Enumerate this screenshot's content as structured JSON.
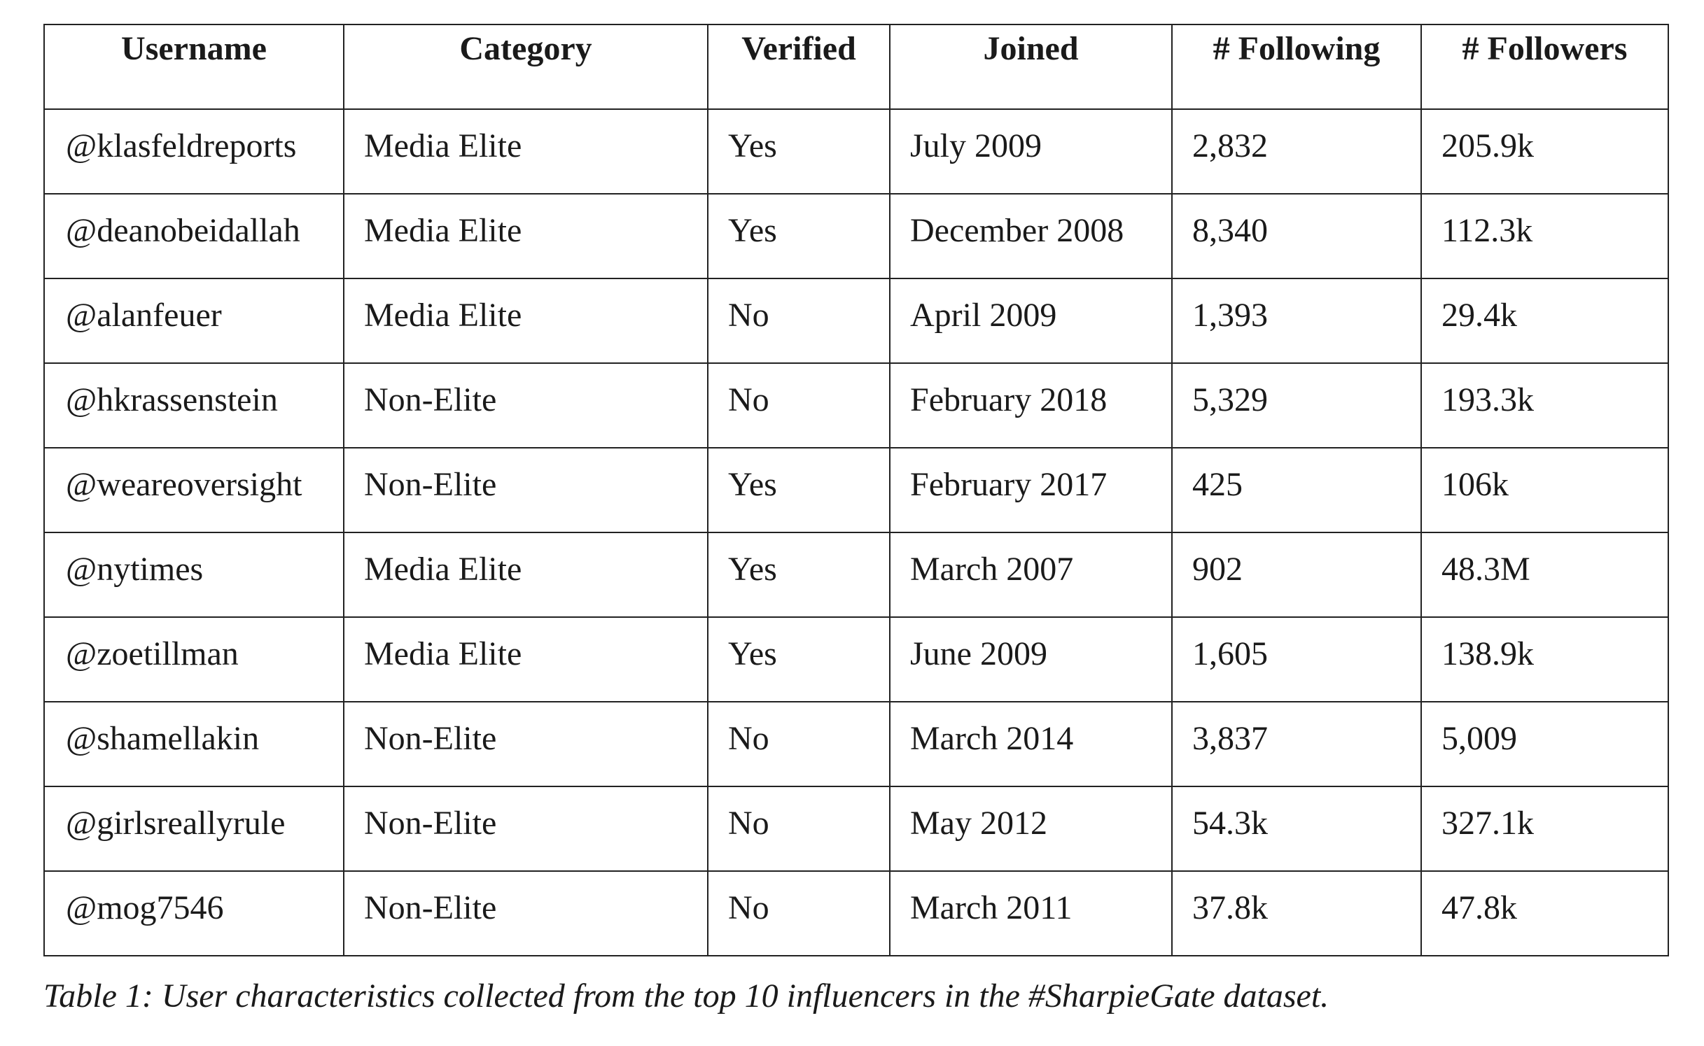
{
  "table": {
    "headers": [
      "Username",
      "Category",
      "Verified",
      "Joined",
      "# Following",
      "# Followers"
    ],
    "rows": [
      [
        "@klasfeldreports",
        "Media Elite",
        "Yes",
        "July 2009",
        "2,832",
        "205.9k"
      ],
      [
        "@deanobeidallah",
        "Media Elite",
        "Yes",
        "December 2008",
        "8,340",
        "112.3k"
      ],
      [
        "@alanfeuer",
        "Media Elite",
        "No",
        "April 2009",
        "1,393",
        "29.4k"
      ],
      [
        "@hkrassenstein",
        "Non-Elite",
        "No",
        "February 2018",
        "5,329",
        "193.3k"
      ],
      [
        "@weareoversight",
        "Non-Elite",
        "Yes",
        "February 2017",
        "425",
        "106k"
      ],
      [
        "@nytimes",
        "Media Elite",
        "Yes",
        "March 2007",
        "902",
        "48.3M"
      ],
      [
        "@zoetillman",
        "Media Elite",
        "Yes",
        "June 2009",
        "1,605",
        "138.9k"
      ],
      [
        "@shamellakin",
        "Non-Elite",
        "No",
        "March 2014",
        "3,837",
        "5,009"
      ],
      [
        "@girlsreallyrule",
        "Non-Elite",
        "No",
        "May 2012",
        "54.3k",
        "327.1k"
      ],
      [
        "@mog7546",
        "Non-Elite",
        "No",
        "March 2011",
        "37.8k",
        "47.8k"
      ]
    ]
  },
  "caption": "Table 1: User characteristics collected from the top 10 influencers in the #SharpieGate dataset."
}
